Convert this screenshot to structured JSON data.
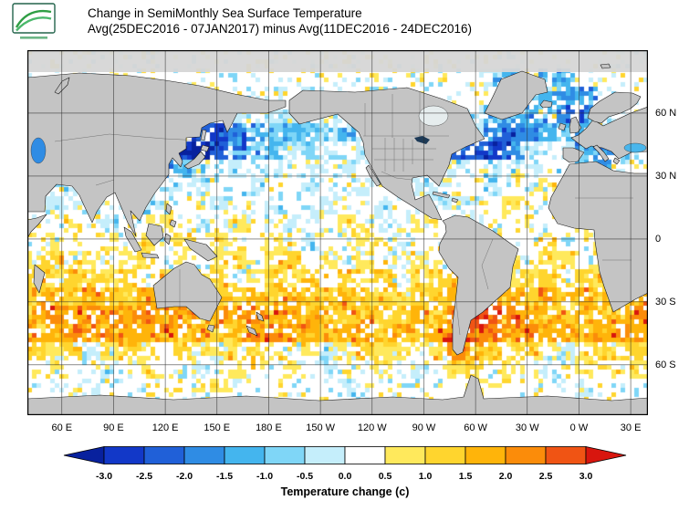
{
  "header": {
    "title_line1": "Change in SemiMonthly Sea Surface Temperature",
    "title_line2": "Avg(25DEC2016 - 07JAN2017) minus Avg(11DEC2016 - 24DEC2016)"
  },
  "map": {
    "lat_labels": [
      "60 N",
      "30 N",
      "0",
      "30 S",
      "60 S"
    ],
    "lon_labels": [
      "60 E",
      "90 E",
      "120 E",
      "150 E",
      "180 E",
      "150 W",
      "120 W",
      "90 W",
      "60 W",
      "30 W",
      "0 W",
      "30 E"
    ],
    "land_color": "#c4c4c4",
    "grid_color": "#2a2a2a",
    "palette_keys": "abcdefg.hijklm",
    "field_rows": [
      "..................................",
      ".........................ge.ee....",
      ".............g.g............ede...",
      "...........g.gg.g.g.....gede.dd...",
      ".........cbdefefgeg.....gdcdefe...",
      "........bacdfegfg.gg...ccbdg.gede.",
      ".......deg.g.g.g.g.g..eg.g.g..ed..",
      "g.g..g.g.g..g..g..g..gg..g..h.....",
      ".g.g..g...g..g..g..g..gg..h..g....",
      "..h.g..h.g.h..g..h.g.h..g..h..h...",
      ".h..h.h.h.h..h.g..h.g..h.h..h..h.h",
      "hi.h.hi.h.hh.hi.h.h.gh.h.hi.hh.h.i",
      "ihiihi.ihii.hihi.ihi.hiihihii.ihih",
      "ijijiijiijiijijiijiihiijjkjijijiij",
      "jkjkjjkjjkjjkjjijijiijikllkjjijjjk",
      "jjkjkjjkjjijjkjjijjijijmlkjkjjijkj",
      "ihighih.ihghih.hghihh.hkjihihghihi",
      ".h..g.h..g.h..h.g..h.g.hi.h.g.h..h",
      "...g......h......g......h.....g...",
      ".................................."
    ]
  },
  "colorbar": {
    "label": "Temperature change (c)",
    "ticks": [
      "-3.0",
      "-2.5",
      "-2.0",
      "-1.5",
      "-1.0",
      "-0.5",
      "0.0",
      "0.5",
      "1.0",
      "1.5",
      "2.0",
      "2.5",
      "3.0"
    ],
    "colors": [
      "#08219e",
      "#1238c8",
      "#2060d8",
      "#2f8ce4",
      "#44b5ee",
      "#7fd6f7",
      "#c5eefb",
      "#ffffff",
      "#ffe95c",
      "#ffd52e",
      "#ffb40a",
      "#fb8c0a",
      "#f05414",
      "#d8160e"
    ]
  }
}
